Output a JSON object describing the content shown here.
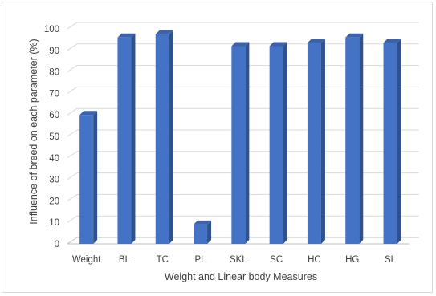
{
  "chart_data": {
    "type": "bar",
    "style": "3d-clustered-column",
    "categories": [
      "Weight",
      "BL",
      "TC",
      "PL",
      "SKL",
      "SC",
      "HC",
      "HG",
      "SL"
    ],
    "series": [
      {
        "values": [
          60,
          96,
          97.5,
          9,
          92,
          92,
          93.5,
          96,
          93.5
        ]
      }
    ],
    "xlabel": "Weight and Linear body Measures",
    "ylabel": "Influence of breed on each parameter (%)",
    "ylim": [
      0,
      100
    ],
    "yticks": [
      0,
      10,
      20,
      30,
      40,
      50,
      60,
      70,
      80,
      90,
      100
    ],
    "grid": true,
    "legend": "none",
    "colors": {
      "front": "#4472c4",
      "side": "#2f528f",
      "top": "#3a62ad",
      "grid": "#d9d9d9",
      "floor": "#bfbfbf"
    }
  }
}
